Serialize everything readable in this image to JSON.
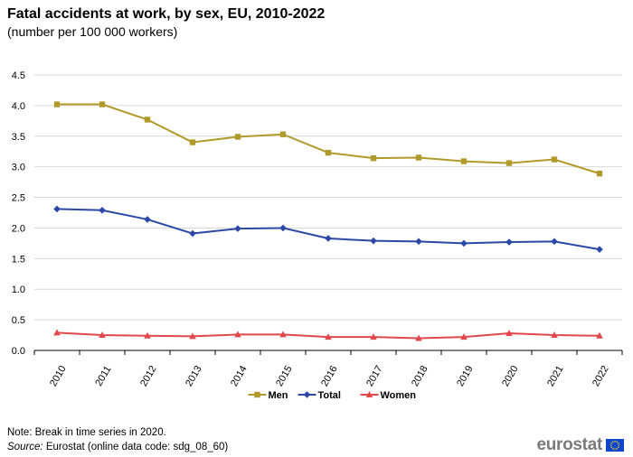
{
  "header": {
    "title": "Fatal accidents at work, by sex, EU, 2010-2022",
    "subtitle": "(number  per 100 000 workers)"
  },
  "chart_data": {
    "type": "line",
    "title": "Fatal accidents at work, by sex, EU, 2010-2022",
    "subtitle": "(number  per 100 000 workers)",
    "xlabel": "",
    "ylabel": "",
    "categories": [
      "2010",
      "2011",
      "2012",
      "2013",
      "2014",
      "2015",
      "2016",
      "2017",
      "2018",
      "2019",
      "2020",
      "2021",
      "2022"
    ],
    "ylim": [
      0,
      4.5
    ],
    "yticks": [
      "0.0",
      "0.5",
      "1.0",
      "1.5",
      "2.0",
      "2.5",
      "3.0",
      "3.5",
      "4.0",
      "4.5"
    ],
    "grid": true,
    "legend_position": "bottom",
    "series": [
      {
        "name": "Men",
        "color": "#b09a2a",
        "marker": "square",
        "values": [
          4.02,
          4.02,
          3.77,
          3.4,
          3.49,
          3.53,
          3.23,
          3.14,
          3.15,
          3.09,
          3.06,
          3.12,
          2.89
        ]
      },
      {
        "name": "Total",
        "color": "#2b48a6",
        "marker": "diamond",
        "values": [
          2.31,
          2.29,
          2.14,
          1.91,
          1.99,
          2.0,
          1.83,
          1.79,
          1.78,
          1.75,
          1.77,
          1.78,
          1.65
        ]
      },
      {
        "name": "Women",
        "color": "#e0484c",
        "marker": "triangle",
        "values": [
          0.29,
          0.25,
          0.24,
          0.23,
          0.26,
          0.26,
          0.22,
          0.22,
          0.2,
          0.22,
          0.28,
          0.25,
          0.24
        ]
      }
    ]
  },
  "footer": {
    "note": "Note: Break in time series in 2020.",
    "source_label": "Source:",
    "source_text": " Eurostat (online data code: sdg_08_60)",
    "logo_text": "eurostat"
  }
}
